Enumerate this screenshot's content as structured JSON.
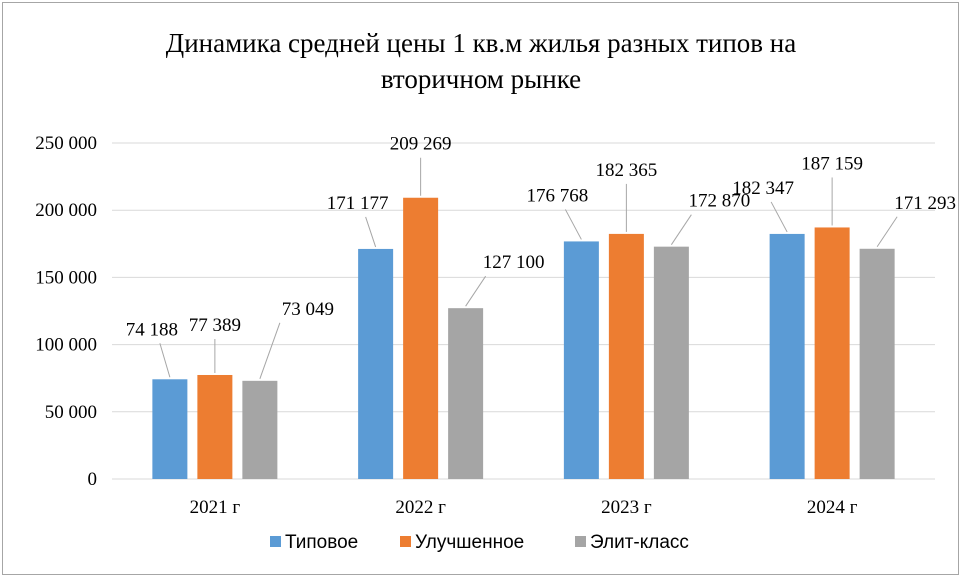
{
  "chart_data": {
    "type": "bar",
    "title_lines": [
      "Динамика средней цены 1 кв.м жилья разных типов на",
      "вторичном рынке"
    ],
    "categories": [
      "2021 г",
      "2022 г",
      "2023 г",
      "2024 г"
    ],
    "series": [
      {
        "name": "Типовое",
        "color": "#5b9bd5",
        "values": [
          74188,
          171177,
          176768,
          182347
        ],
        "labels": [
          "74 188",
          "171 177",
          "176 768",
          "182 347"
        ]
      },
      {
        "name": "Улучшенное",
        "color": "#ed7d31",
        "values": [
          77389,
          209269,
          182365,
          187159
        ],
        "labels": [
          "77 389",
          "209 269",
          "182 365",
          "187 159"
        ]
      },
      {
        "name": "Элит-класс",
        "color": "#a5a5a5",
        "values": [
          73049,
          127100,
          172870,
          171293
        ],
        "labels": [
          "73 049",
          "127 100",
          "172 870",
          "171 293"
        ]
      }
    ],
    "ylim": [
      0,
      250000
    ],
    "yticks": [
      0,
      50000,
      100000,
      150000,
      200000,
      250000
    ],
    "ytick_labels": [
      "0",
      "50 000",
      "100 000",
      "150 000",
      "200 000",
      "250 000"
    ],
    "grid": true,
    "legend_position": "bottom"
  }
}
